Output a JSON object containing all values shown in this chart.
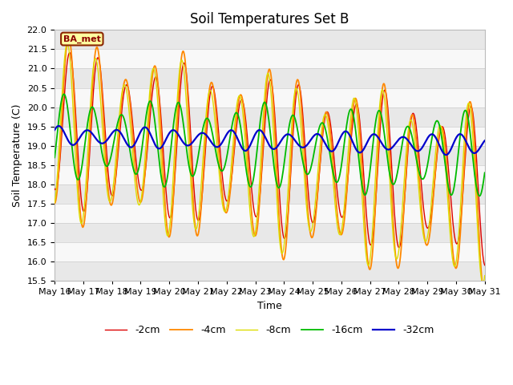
{
  "title": "Soil Temperatures Set B",
  "xlabel": "Time",
  "ylabel": "Soil Temperature (C)",
  "ylim": [
    15.5,
    22.0
  ],
  "yticks": [
    15.5,
    16.0,
    16.5,
    17.0,
    17.5,
    18.0,
    18.5,
    19.0,
    19.5,
    20.0,
    20.5,
    21.0,
    21.5,
    22.0
  ],
  "fig_bg_color": "#ffffff",
  "plot_bg_color": "#ffffff",
  "grid_color": "#e0e0e0",
  "legend_label": "BA_met",
  "legend_box_facecolor": "#ffffa0",
  "legend_box_edgecolor": "#8b2500",
  "series_labels": [
    "-2cm",
    "-4cm",
    "-8cm",
    "-16cm",
    "-32cm"
  ],
  "series_colors": [
    "#dd0000",
    "#ff8800",
    "#dddd00",
    "#00bb00",
    "#0000cc"
  ],
  "series_linewidths": [
    1.0,
    1.3,
    1.0,
    1.3,
    1.6
  ],
  "title_fontsize": 12,
  "axis_label_fontsize": 9,
  "tick_fontsize": 8,
  "start_day": 16,
  "n_days": 15
}
